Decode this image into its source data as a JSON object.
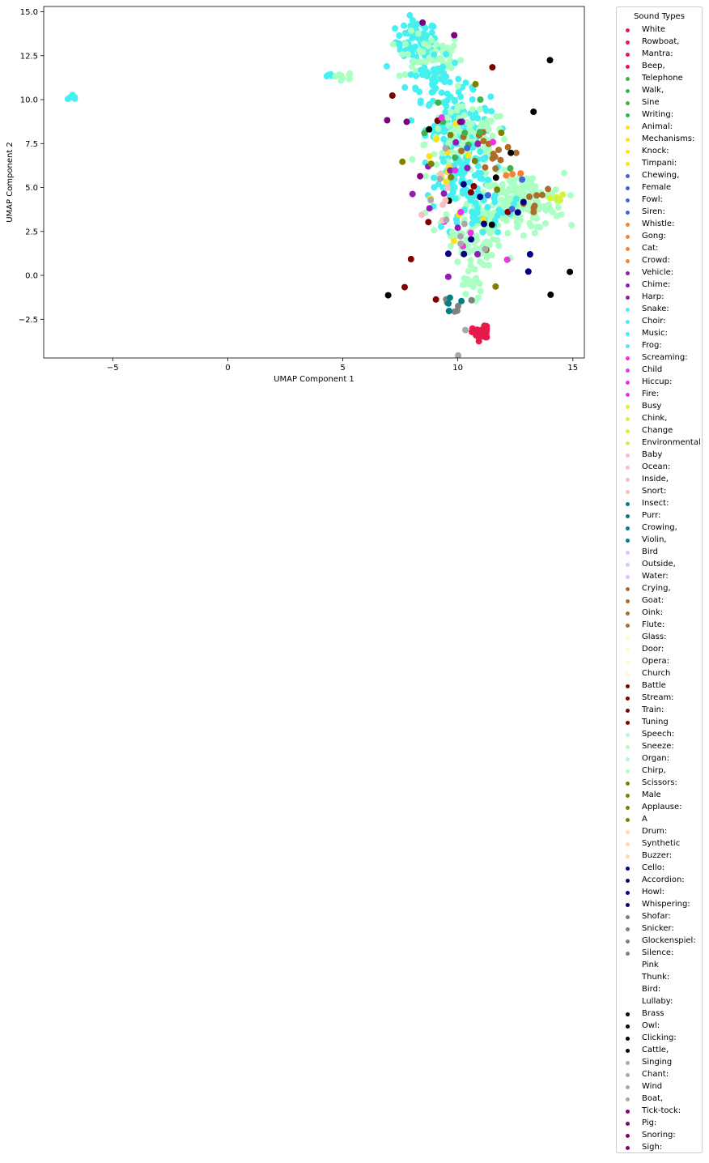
{
  "chart_data": {
    "type": "scatter",
    "xlabel": "UMAP Component 1",
    "ylabel": "UMAP Component 2",
    "xlim": [
      -8,
      15.5
    ],
    "ylim": [
      -4.7,
      15.3
    ],
    "xticks": [
      -5,
      0,
      5,
      10,
      15
    ],
    "yticks": [
      -2.5,
      0.0,
      2.5,
      5.0,
      7.5,
      10.0,
      12.5,
      15.0
    ],
    "grid": false,
    "legend": {
      "title": "Sound Types",
      "placement": "outside-right",
      "entries": [
        {
          "label": "White",
          "color": "#e6194b"
        },
        {
          "label": "Rowboat,",
          "color": "#e6194b"
        },
        {
          "label": "Mantra:",
          "color": "#e6194b"
        },
        {
          "label": "Beep,",
          "color": "#e6194b"
        },
        {
          "label": "Telephone",
          "color": "#3cb44b"
        },
        {
          "label": "Walk,",
          "color": "#3cb44b"
        },
        {
          "label": "Sine",
          "color": "#3cb44b"
        },
        {
          "label": "Writing:",
          "color": "#3cb44b"
        },
        {
          "label": "Animal:",
          "color": "#ffe119"
        },
        {
          "label": "Mechanisms:",
          "color": "#ffe119"
        },
        {
          "label": "Knock:",
          "color": "#ffe119"
        },
        {
          "label": "Timpani:",
          "color": "#ffe119"
        },
        {
          "label": "Chewing,",
          "color": "#4363d8"
        },
        {
          "label": "Female",
          "color": "#4363d8"
        },
        {
          "label": "Fowl:",
          "color": "#4363d8"
        },
        {
          "label": "Siren:",
          "color": "#4363d8"
        },
        {
          "label": "Whistle:",
          "color": "#f58231"
        },
        {
          "label": "Gong:",
          "color": "#f58231"
        },
        {
          "label": "Cat:",
          "color": "#f58231"
        },
        {
          "label": "Crowd:",
          "color": "#f58231"
        },
        {
          "label": "Vehicle:",
          "color": "#911eb4"
        },
        {
          "label": "Chime:",
          "color": "#911eb4"
        },
        {
          "label": "Harp:",
          "color": "#911eb4"
        },
        {
          "label": "Snake:",
          "color": "#46f0f0"
        },
        {
          "label": "Choir:",
          "color": "#46f0f0"
        },
        {
          "label": "Music:",
          "color": "#46f0f0"
        },
        {
          "label": "Frog:",
          "color": "#46f0f0"
        },
        {
          "label": "Screaming:",
          "color": "#f032e6"
        },
        {
          "label": "Child",
          "color": "#f032e6"
        },
        {
          "label": "Hiccup:",
          "color": "#f032e6"
        },
        {
          "label": "Fire:",
          "color": "#f032e6"
        },
        {
          "label": "Busy",
          "color": "#d2f53c"
        },
        {
          "label": "Chink,",
          "color": "#d2f53c"
        },
        {
          "label": "Change",
          "color": "#d2f53c"
        },
        {
          "label": "Environmental",
          "color": "#d2f53c"
        },
        {
          "label": "Baby",
          "color": "#fabebe"
        },
        {
          "label": "Ocean:",
          "color": "#fabebe"
        },
        {
          "label": "Inside,",
          "color": "#fabebe"
        },
        {
          "label": "Snort:",
          "color": "#fabebe"
        },
        {
          "label": "Insect:",
          "color": "#008080"
        },
        {
          "label": "Purr:",
          "color": "#008080"
        },
        {
          "label": "Crowing,",
          "color": "#008080"
        },
        {
          "label": "Violin,",
          "color": "#008080"
        },
        {
          "label": "Bird",
          "color": "#e6beff"
        },
        {
          "label": "Outside,",
          "color": "#e6beff"
        },
        {
          "label": "Water:",
          "color": "#e6beff"
        },
        {
          "label": "Crying,",
          "color": "#aa6e28"
        },
        {
          "label": "Goat:",
          "color": "#aa6e28"
        },
        {
          "label": "Oink:",
          "color": "#aa6e28"
        },
        {
          "label": "Flute:",
          "color": "#aa6e28"
        },
        {
          "label": "Glass:",
          "color": "#fffac8"
        },
        {
          "label": "Door:",
          "color": "#fffac8"
        },
        {
          "label": "Opera:",
          "color": "#fffac8"
        },
        {
          "label": "Church",
          "color": "#fffac8"
        },
        {
          "label": "Battle",
          "color": "#800000"
        },
        {
          "label": "Stream:",
          "color": "#800000"
        },
        {
          "label": "Train:",
          "color": "#800000"
        },
        {
          "label": "Tuning",
          "color": "#800000"
        },
        {
          "label": "Speech:",
          "color": "#aaffc3"
        },
        {
          "label": "Sneeze:",
          "color": "#aaffc3"
        },
        {
          "label": "Organ:",
          "color": "#aaffc3"
        },
        {
          "label": "Chirp,",
          "color": "#aaffc3"
        },
        {
          "label": "Scissors:",
          "color": "#808000"
        },
        {
          "label": "Male",
          "color": "#808000"
        },
        {
          "label": "Applause:",
          "color": "#808000"
        },
        {
          "label": "A",
          "color": "#808000"
        },
        {
          "label": "Drum:",
          "color": "#ffd8b1"
        },
        {
          "label": "Synthetic",
          "color": "#ffd8b1"
        },
        {
          "label": "Buzzer:",
          "color": "#ffd8b1"
        },
        {
          "label": "Cello:",
          "color": "#000080"
        },
        {
          "label": "Accordion:",
          "color": "#000080"
        },
        {
          "label": "Howl:",
          "color": "#000080"
        },
        {
          "label": "Whispering:",
          "color": "#000080"
        },
        {
          "label": "Shofar:",
          "color": "#808080"
        },
        {
          "label": "Snicker:",
          "color": "#808080"
        },
        {
          "label": "Glockenspiel:",
          "color": "#808080"
        },
        {
          "label": "Silence:",
          "color": "#808080"
        },
        {
          "label": "Pink",
          "color": "#ffffff"
        },
        {
          "label": "Thunk:",
          "color": "#ffffff"
        },
        {
          "label": "Bird:",
          "color": "#ffffff"
        },
        {
          "label": "Lullaby:",
          "color": "#ffffff"
        },
        {
          "label": "Brass",
          "color": "#000000"
        },
        {
          "label": "Owl:",
          "color": "#000000"
        },
        {
          "label": "Clicking:",
          "color": "#000000"
        },
        {
          "label": "Cattle,",
          "color": "#000000"
        },
        {
          "label": "Singing",
          "color": "#a9a9a9"
        },
        {
          "label": "Chant:",
          "color": "#a9a9a9"
        },
        {
          "label": "Wind",
          "color": "#a9a9a9"
        },
        {
          "label": "Boat,",
          "color": "#a9a9a9"
        },
        {
          "label": "Tick-tock:",
          "color": "#800080"
        },
        {
          "label": "Pig:",
          "color": "#800080"
        },
        {
          "label": "Snoring:",
          "color": "#800080"
        },
        {
          "label": "Sigh:",
          "color": "#800080"
        }
      ]
    },
    "clusters": [
      {
        "color": "#46f0f0",
        "cx": -6.7,
        "cy": 10.1,
        "sx": 0.12,
        "sy": 0.12,
        "n": 8
      },
      {
        "color": "#46f0f0",
        "cx": 4.4,
        "cy": 11.4,
        "sx": 0.12,
        "sy": 0.05,
        "n": 5
      },
      {
        "color": "#aaffc3",
        "cx": 5.0,
        "cy": 11.35,
        "sx": 0.25,
        "sy": 0.1,
        "n": 8
      },
      {
        "color": "#46f0f0",
        "cx": 8.2,
        "cy": 13.3,
        "sx": 0.45,
        "sy": 0.6,
        "n": 70
      },
      {
        "color": "#aaffc3",
        "cx": 8.8,
        "cy": 12.4,
        "sx": 0.7,
        "sy": 0.7,
        "n": 60
      },
      {
        "color": "#46f0f0",
        "cx": 9.0,
        "cy": 11.2,
        "sx": 0.6,
        "sy": 0.6,
        "n": 50
      },
      {
        "color": "#46f0f0",
        "cx": 10.0,
        "cy": 8.6,
        "sx": 0.7,
        "sy": 0.9,
        "n": 110
      },
      {
        "color": "#aaffc3",
        "cx": 10.4,
        "cy": 7.5,
        "sx": 0.9,
        "sy": 1.0,
        "n": 110
      },
      {
        "color": "#46f0f0",
        "cx": 10.3,
        "cy": 5.7,
        "sx": 0.6,
        "sy": 0.7,
        "n": 70
      },
      {
        "color": "#aaffc3",
        "cx": 12.8,
        "cy": 4.2,
        "sx": 0.9,
        "sy": 0.8,
        "n": 150
      },
      {
        "color": "#aaffc3",
        "cx": 11.2,
        "cy": 3.4,
        "sx": 0.9,
        "sy": 0.7,
        "n": 70
      },
      {
        "color": "#46f0f0",
        "cx": 10.8,
        "cy": 3.8,
        "sx": 0.8,
        "sy": 0.7,
        "n": 50
      },
      {
        "color": "#aaffc3",
        "cx": 10.6,
        "cy": 1.5,
        "sx": 0.5,
        "sy": 0.5,
        "n": 40
      },
      {
        "color": "#aaffc3",
        "cx": 10.6,
        "cy": -0.5,
        "sx": 0.2,
        "sy": 0.6,
        "n": 20
      },
      {
        "color": "#e6194b",
        "cx": 11.0,
        "cy": -3.3,
        "sx": 0.18,
        "sy": 0.2,
        "n": 40
      },
      {
        "color": "#aa6e28",
        "cx": 11.5,
        "cy": 7.0,
        "sx": 0.6,
        "sy": 0.6,
        "n": 16
      },
      {
        "color": "#aa6e28",
        "cx": 13.5,
        "cy": 4.0,
        "sx": 0.5,
        "sy": 0.5,
        "n": 8
      },
      {
        "color": "#3cb44b",
        "cx": 10.0,
        "cy": 7.5,
        "sx": 1.0,
        "sy": 1.5,
        "n": 10
      },
      {
        "color": "#ffe119",
        "cx": 9.8,
        "cy": 6.0,
        "sx": 1.2,
        "sy": 2.5,
        "n": 14
      },
      {
        "color": "#000080",
        "cx": 11.5,
        "cy": 3.0,
        "sx": 1.2,
        "sy": 2.0,
        "n": 10
      },
      {
        "color": "#000000",
        "cx": 11.0,
        "cy": 4.0,
        "sx": 1.8,
        "sy": 4.0,
        "n": 12
      },
      {
        "color": "#911eb4",
        "cx": 9.8,
        "cy": 4.5,
        "sx": 1.0,
        "sy": 3.0,
        "n": 12
      },
      {
        "color": "#800000",
        "cx": 10.0,
        "cy": 6.0,
        "sx": 1.5,
        "sy": 3.5,
        "n": 10
      },
      {
        "color": "#808000",
        "cx": 10.5,
        "cy": 5.0,
        "sx": 1.5,
        "sy": 3.5,
        "n": 10
      },
      {
        "color": "#808080",
        "cx": 9.8,
        "cy": -1.5,
        "sx": 0.5,
        "sy": 0.3,
        "n": 6
      },
      {
        "color": "#f032e6",
        "cx": 10.0,
        "cy": 3.5,
        "sx": 1.0,
        "sy": 2.5,
        "n": 8
      },
      {
        "color": "#d2f53c",
        "cx": 14.3,
        "cy": 4.3,
        "sx": 0.1,
        "sy": 0.25,
        "n": 6
      },
      {
        "color": "#fabebe",
        "cx": 9.2,
        "cy": 3.5,
        "sx": 0.6,
        "sy": 1.5,
        "n": 6
      },
      {
        "color": "#a9a9a9",
        "cx": 9.8,
        "cy": 5.0,
        "sx": 1.5,
        "sy": 4.0,
        "n": 10
      },
      {
        "color": "#008080",
        "cx": 9.8,
        "cy": -1.4,
        "sx": 0.4,
        "sy": 0.2,
        "n": 4
      },
      {
        "color": "#800080",
        "cx": 9.5,
        "cy": 9.0,
        "sx": 1.5,
        "sy": 3.0,
        "n": 6
      },
      {
        "color": "#4363d8",
        "cx": 12.0,
        "cy": 5.0,
        "sx": 1.0,
        "sy": 1.0,
        "n": 4
      },
      {
        "color": "#f58231",
        "cx": 12.5,
        "cy": 5.3,
        "sx": 0.5,
        "sy": 0.5,
        "n": 3
      }
    ]
  }
}
